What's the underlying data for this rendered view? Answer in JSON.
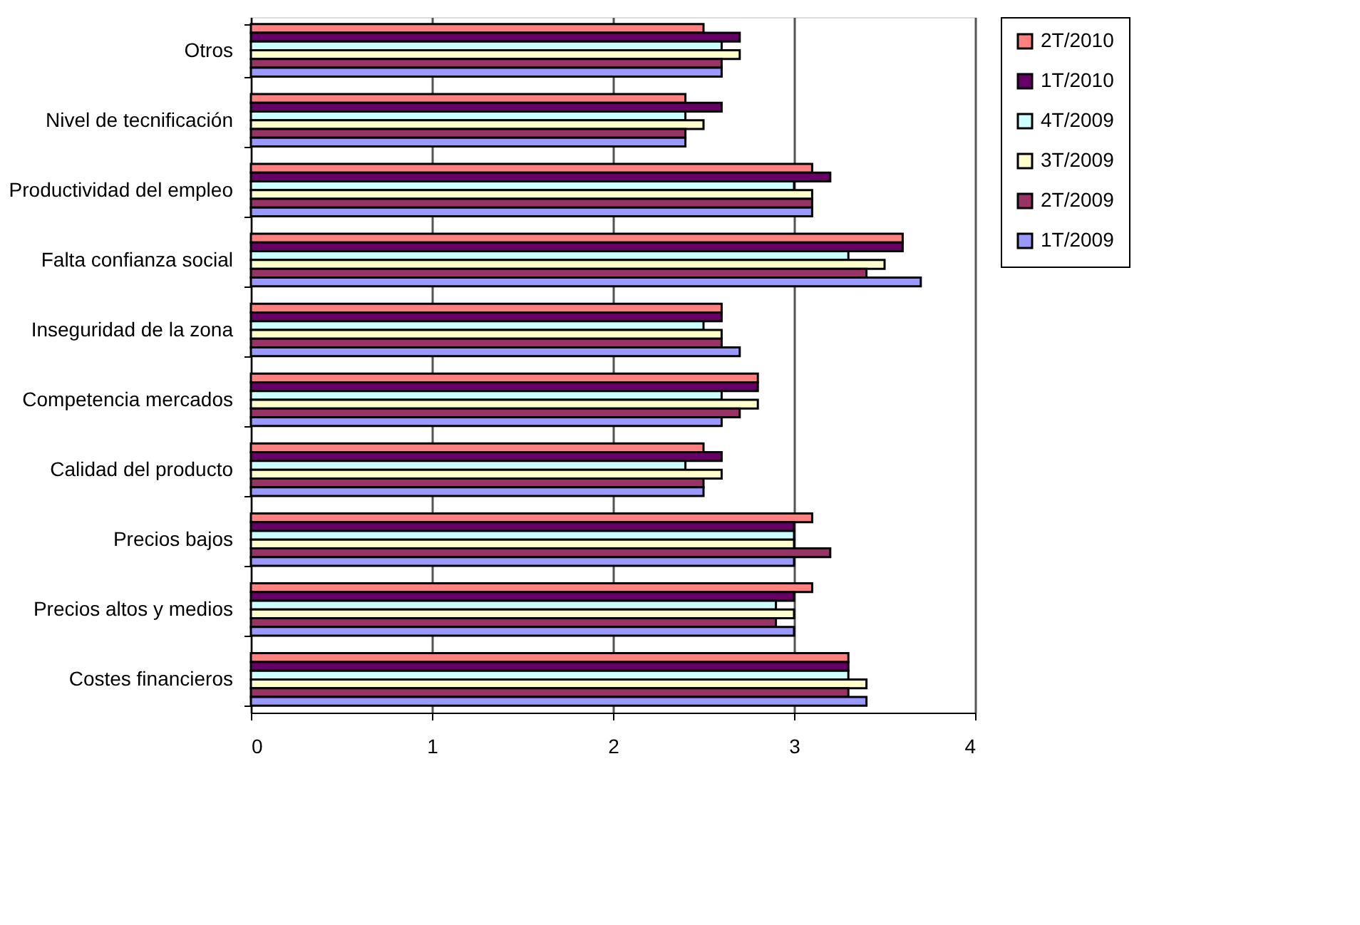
{
  "chart_data": {
    "type": "bar",
    "orientation": "horizontal",
    "categories": [
      "Otros",
      "Nivel de tecnificación",
      "Productividad del empleo",
      "Falta confianza social",
      "Inseguridad de la zona",
      "Competencia mercados",
      "Calidad del producto",
      "Precios bajos",
      "Precios altos y medios",
      "Costes financieros"
    ],
    "series": [
      {
        "name": "2T/2010",
        "color": "#ff8080",
        "values": [
          2.5,
          2.4,
          3.1,
          3.6,
          2.6,
          2.8,
          2.5,
          3.1,
          3.1,
          3.3
        ]
      },
      {
        "name": "1T/2010",
        "color": "#660066",
        "values": [
          2.7,
          2.6,
          3.2,
          3.6,
          2.6,
          2.8,
          2.6,
          3.0,
          3.0,
          3.3
        ]
      },
      {
        "name": "4T/2009",
        "color": "#ccffff",
        "values": [
          2.6,
          2.4,
          3.0,
          3.3,
          2.5,
          2.6,
          2.4,
          3.0,
          2.9,
          3.3
        ]
      },
      {
        "name": "3T/2009",
        "color": "#ffffcc",
        "values": [
          2.7,
          2.5,
          3.1,
          3.5,
          2.6,
          2.8,
          2.6,
          3.0,
          3.0,
          3.4
        ]
      },
      {
        "name": "2T/2009",
        "color": "#993366",
        "values": [
          2.6,
          2.4,
          3.1,
          3.4,
          2.6,
          2.7,
          2.5,
          3.2,
          2.9,
          3.3
        ]
      },
      {
        "name": "1T/2009",
        "color": "#9999ff",
        "values": [
          2.6,
          2.4,
          3.1,
          3.7,
          2.7,
          2.6,
          2.5,
          3.0,
          3.0,
          3.4
        ]
      }
    ],
    "xlim": [
      0,
      4
    ],
    "xticks": [
      0,
      1,
      2,
      3,
      4
    ],
    "grid": "x",
    "legend": "right"
  }
}
